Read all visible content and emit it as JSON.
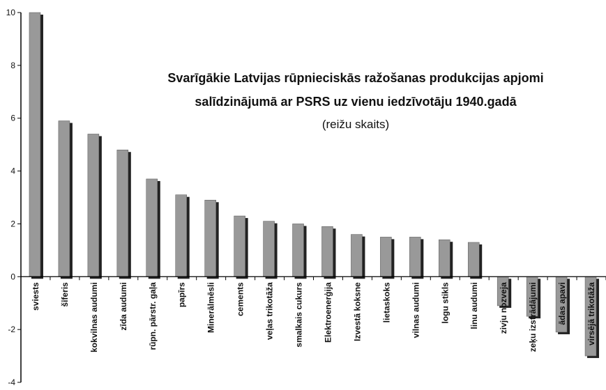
{
  "chart_data": {
    "type": "bar",
    "title": [
      "Svarīgākie Latvijas rūpnieciskās ražošanas produkcijas apjomi",
      "salīdzinājumā ar PSRS uz vienu iedzīvotāju 1940.gadā"
    ],
    "subtitle": "(reižu skaits)",
    "categories": [
      "sviests",
      "šīferis",
      "kokvilnas audumi",
      "zīda audumi",
      "rūpn. pārstr. gaļa",
      "papīrs",
      "Minerālmēsli",
      "cements",
      "veļas trikotāža",
      "smalkais cukurs",
      "Elektroenerģija",
      "Izvestā koksne",
      "lietaskoks",
      "vilnas audumi",
      "logu stikls",
      "linu audumi",
      "zivju nozveja",
      "zeķu izstrādājumi",
      "ādas apavi",
      "virsējā trikotāža"
    ],
    "values": [
      10,
      5.9,
      5.4,
      4.8,
      3.7,
      3.1,
      2.9,
      2.3,
      2.1,
      2.0,
      1.9,
      1.6,
      1.5,
      1.5,
      1.4,
      1.3,
      -1.1,
      -1.5,
      -2.1,
      -3.0
    ],
    "color": "#999999",
    "shadow_color": "#222222",
    "ylim": [
      -4,
      10
    ],
    "yticks": [
      -4,
      -2,
      0,
      2,
      4,
      6,
      8,
      10
    ],
    "grid": false
  }
}
